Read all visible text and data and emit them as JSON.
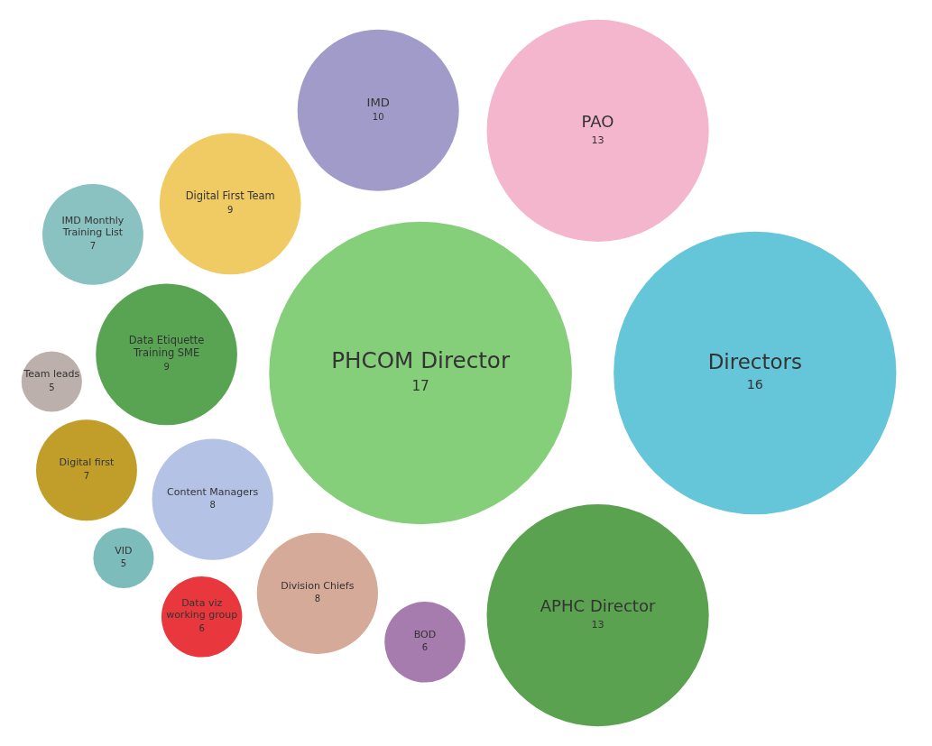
{
  "chart_data": {
    "type": "other",
    "categories": [
      "PHCOM Director",
      "Directors",
      "PAO",
      "APHC Director",
      "IMD",
      "Digital First Team",
      "Data Etiquette Training SME",
      "Content Managers",
      "Division Chiefs",
      "Digital first",
      "IMD Monthly Training List",
      "BOD",
      "Data viz working group",
      "Team leads",
      "VID"
    ],
    "values": [
      17,
      16,
      13,
      13,
      10,
      9,
      9,
      8,
      8,
      7,
      7,
      6,
      6,
      5,
      5
    ],
    "colors": [
      "#86cf7a",
      "#66c6d9",
      "#f4b6cc",
      "#5aa250",
      "#a09bc8",
      "#f0cb63",
      "#59a453",
      "#b3c2e5",
      "#d6aa98",
      "#c19e2a",
      "#89c2c1",
      "#a67bad",
      "#e8383d",
      "#bbb0ac",
      "#7cbdbb"
    ],
    "data_labels": true
  }
}
